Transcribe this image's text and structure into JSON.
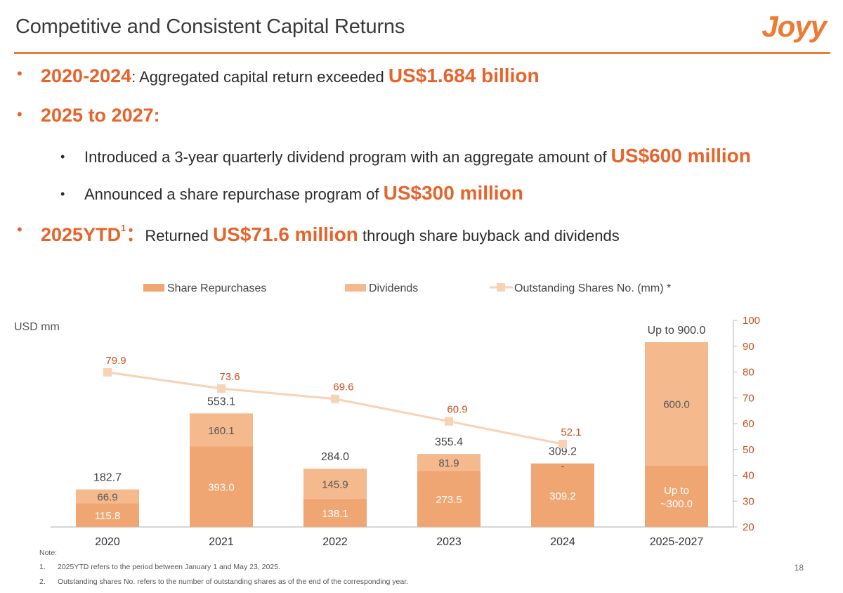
{
  "header": {
    "title": "Competitive and Consistent Capital Returns",
    "logo_text": "Joyy"
  },
  "bullets": {
    "b1": {
      "highlight": "2020-2024",
      "text": ":  Aggregated capital return exceeded ",
      "value": "US$1.684 billion"
    },
    "b2": {
      "highlight": "2025 to 2027:"
    },
    "b2a": {
      "text": "Introduced a 3-year quarterly dividend program with an aggregate amount of ",
      "value": "US$600 million"
    },
    "b2b": {
      "text": "Announced a share repurchase program of ",
      "value": "US$300 million"
    },
    "b3": {
      "highlight": "2025YTD",
      "footnote": "1",
      "sep": "：",
      "text_before": "Returned ",
      "value": "US$71.6 million",
      "text_after": " through share buyback and dividends"
    }
  },
  "colors": {
    "accent": "#ee7a33",
    "repurchase": "#f0a672",
    "dividend": "#f5b98e",
    "line": "#f8d2b5",
    "label_orange": "#c8501e"
  },
  "chart_data": {
    "type": "bar",
    "stacked": true,
    "y_unit_label": "USD mm",
    "categories": [
      "2020",
      "2021",
      "2022",
      "2023",
      "2024",
      "2025-2027"
    ],
    "series": [
      {
        "name": "Share Repurchases",
        "values": [
          115.8,
          393.0,
          138.1,
          273.5,
          309.2,
          300.0
        ],
        "labels": [
          "115.8",
          "393.0",
          "138.1",
          "273.5",
          "309.2",
          "Up to\n~300.0"
        ]
      },
      {
        "name": "Dividends",
        "values": [
          66.9,
          160.1,
          145.9,
          81.9,
          0,
          600.0
        ],
        "labels": [
          "66.9",
          "160.1",
          "145.9",
          "81.9",
          "-",
          "600.0"
        ]
      }
    ],
    "totals": [
      "182.7",
      "553.1",
      "284.0",
      "355.4",
      "309.2",
      "Up to 900.0"
    ],
    "line_series": {
      "name": "Outstanding Shares No. (mm) *",
      "axis": "right",
      "values": [
        79.9,
        73.6,
        69.6,
        60.9,
        52.1,
        null
      ],
      "labels": [
        "79.9",
        "73.6",
        "69.6",
        "60.9",
        "52.1",
        ""
      ]
    },
    "ylim_left": [
      0,
      900
    ],
    "ylim_right": [
      20,
      100
    ],
    "right_ticks": [
      "20",
      "30",
      "40",
      "50",
      "60",
      "70",
      "80",
      "90",
      "100"
    ],
    "legend_position": "top"
  },
  "notes": {
    "heading": "Note:",
    "items": [
      {
        "num": "1.",
        "text": "2025YTD refers to the period between January 1 and May 23, 2025."
      },
      {
        "num": "2.",
        "text": "Outstanding shares No. refers to the number of outstanding shares as of the end of the corresponding year."
      }
    ]
  },
  "page_number": "18"
}
